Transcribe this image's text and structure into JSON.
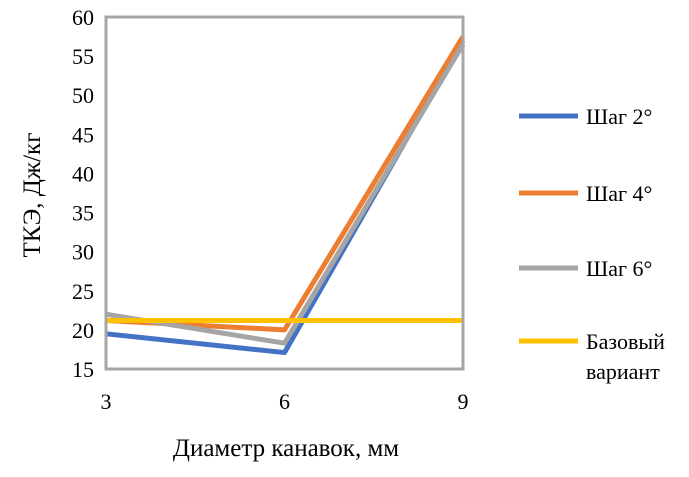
{
  "chart_data": {
    "type": "line",
    "title": "",
    "xlabel": "Диаметр канавок, мм",
    "ylabel": "ТКЭ, Дж/кг",
    "x": [
      3,
      6,
      9
    ],
    "xticks": [
      "3",
      "6",
      "9"
    ],
    "ylim": [
      15,
      60
    ],
    "yticks": [
      "15",
      "20",
      "25",
      "30",
      "35",
      "40",
      "45",
      "50",
      "55",
      "60"
    ],
    "grid": false,
    "legend_position": "right",
    "series": [
      {
        "name": "Шаг 2°",
        "color": "#4472C4",
        "values": [
          19.5,
          17.1,
          57.0
        ]
      },
      {
        "name": "Шаг 4°",
        "color": "#ED7D31",
        "values": [
          21.2,
          20.0,
          57.5
        ]
      },
      {
        "name": "Шаг 6°",
        "color": "#A5A5A5",
        "values": [
          22.0,
          18.3,
          56.5
        ]
      },
      {
        "name": "Базовый вариант",
        "color": "#FFC000",
        "values": [
          21.2,
          21.2,
          21.2
        ]
      }
    ]
  }
}
